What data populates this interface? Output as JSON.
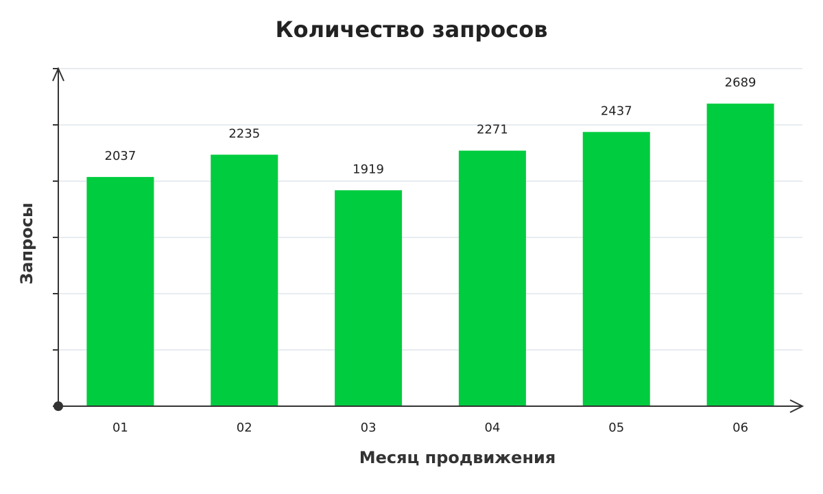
{
  "chart_data": {
    "type": "bar",
    "title": "Количество запросов",
    "x_label": "Месяц продвижения",
    "y_label": "Запросы",
    "categories": [
      "01",
      "02",
      "03",
      "04",
      "05",
      "06"
    ],
    "values": [
      2037,
      2235,
      1919,
      2271,
      2437,
      2689
    ],
    "color": "#00cc3f",
    "ylim": [
      0,
      3000
    ],
    "yticks": [
      0,
      500,
      1000,
      1500,
      2000,
      2500,
      3000
    ],
    "grid": true
  }
}
